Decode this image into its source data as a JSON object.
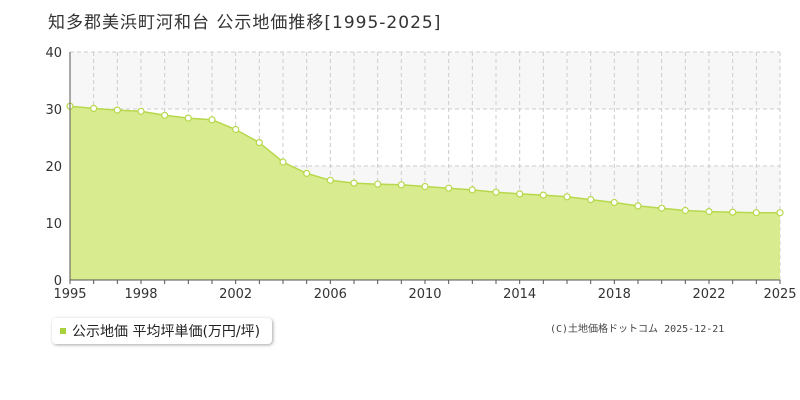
{
  "colors": {
    "fill": "#d9eb8f",
    "line": "#b7d84b",
    "marker_stroke": "#b7d84b",
    "marker_fill": "#ffffff",
    "grid": "#cccccc",
    "band": "#f7f7f7",
    "axis_text": "#333333",
    "legend_swatch": "#a8d23c"
  },
  "legend": {
    "label": "公示地価 平均坪単価(万円/坪)"
  },
  "credit": "(C)土地価格ドットコム 2025-12-21",
  "chart_data": {
    "type": "area",
    "title": "知多郡美浜町河和台 公示地価推移[1995-2025]",
    "xlabel": "",
    "ylabel": "",
    "xlim": [
      1995,
      2025
    ],
    "ylim": [
      0,
      40
    ],
    "yticks": [
      0,
      10,
      20,
      30,
      40
    ],
    "xticks": [
      1995,
      1998,
      2002,
      2006,
      2010,
      2014,
      2018,
      2022,
      2025
    ],
    "grid": true,
    "legend_position": "bottom-left",
    "series": [
      {
        "name": "公示地価 平均坪単価(万円/坪)",
        "x": [
          1995,
          1996,
          1997,
          1998,
          1999,
          2000,
          2001,
          2002,
          2003,
          2004,
          2005,
          2006,
          2007,
          2008,
          2009,
          2010,
          2011,
          2012,
          2013,
          2014,
          2015,
          2016,
          2017,
          2018,
          2019,
          2020,
          2021,
          2022,
          2023,
          2024,
          2025
        ],
        "values": [
          30.5,
          30.1,
          29.8,
          29.6,
          28.9,
          28.4,
          28.1,
          26.4,
          24.1,
          20.7,
          18.7,
          17.5,
          17.0,
          16.8,
          16.7,
          16.4,
          16.1,
          15.8,
          15.4,
          15.1,
          14.9,
          14.6,
          14.1,
          13.6,
          13.0,
          12.6,
          12.2,
          12.0,
          11.9,
          11.8,
          11.8
        ]
      }
    ]
  }
}
